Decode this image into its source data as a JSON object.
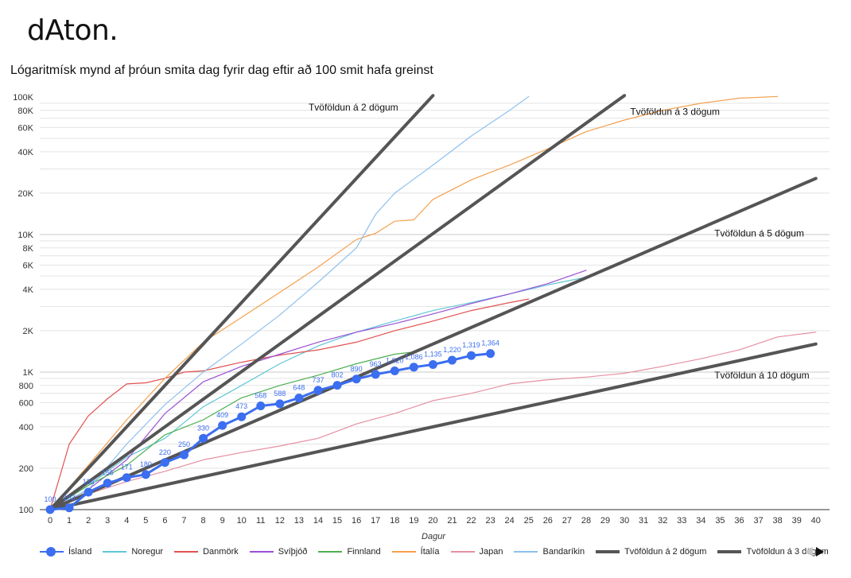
{
  "logo": "dAton.",
  "chart_data": {
    "type": "line",
    "title": "Lógaritmísk mynd af þróun smita dag fyrir dag eftir að 100 smit hafa greinst",
    "xlabel": "Dagur",
    "ylabel": "",
    "y_scale": "log",
    "xlim": [
      0,
      40
    ],
    "ylim": [
      100,
      100000
    ],
    "grid": true,
    "legend_position": "bottom",
    "x_ticks": [
      "0",
      "1",
      "2",
      "3",
      "4",
      "5",
      "6",
      "7",
      "8",
      "9",
      "10",
      "11",
      "12",
      "13",
      "14",
      "15",
      "16",
      "17",
      "18",
      "19",
      "20",
      "21",
      "22",
      "23",
      "24",
      "25",
      "26",
      "27",
      "28",
      "29",
      "30",
      "31",
      "32",
      "33",
      "34",
      "35",
      "36",
      "37",
      "38",
      "39",
      "40"
    ],
    "y_ticks": [
      {
        "v": 100,
        "label": "100"
      },
      {
        "v": 200,
        "label": "200"
      },
      {
        "v": 400,
        "label": "400"
      },
      {
        "v": 600,
        "label": "600"
      },
      {
        "v": 800,
        "label": "800"
      },
      {
        "v": 1000,
        "label": "1K"
      },
      {
        "v": 2000,
        "label": "2K"
      },
      {
        "v": 4000,
        "label": "4K"
      },
      {
        "v": 6000,
        "label": "6K"
      },
      {
        "v": 8000,
        "label": "8K"
      },
      {
        "v": 10000,
        "label": "10K"
      },
      {
        "v": 20000,
        "label": "20K"
      },
      {
        "v": 40000,
        "label": "40K"
      },
      {
        "v": 60000,
        "label": "60K"
      },
      {
        "v": 80000,
        "label": "80K"
      },
      {
        "v": 100000,
        "label": "100K"
      }
    ],
    "series": [
      {
        "name": "Ísland",
        "color": "#3b6ef0",
        "highlight": true,
        "x": [
          0,
          1,
          2,
          3,
          4,
          5,
          6,
          7,
          8,
          9,
          10,
          11,
          12,
          13,
          14,
          15,
          16,
          17,
          18,
          19,
          20,
          21,
          22,
          23
        ],
        "values": [
          100,
          103,
          134,
          156,
          171,
          180,
          220,
          250,
          330,
          409,
          473,
          568,
          588,
          648,
          737,
          802,
          890,
          963,
          1020,
          1086,
          1135,
          1220,
          1319,
          1364
        ],
        "labels": [
          "100",
          "103",
          "134",
          "156",
          "171",
          "180",
          "220",
          "250",
          "330",
          "409",
          "473",
          "568",
          "588",
          "648",
          "737",
          "802",
          "890",
          "963",
          "1,020",
          "1,086",
          "1,135",
          "1,220",
          "1,319",
          "1,364"
        ]
      },
      {
        "name": "Noregur",
        "color": "#5fc6d6",
        "x": [
          0,
          2,
          4,
          6,
          8,
          10,
          12,
          14,
          16,
          18,
          20,
          22,
          24,
          26,
          28
        ],
        "values": [
          100,
          150,
          240,
          330,
          560,
          800,
          1150,
          1550,
          1950,
          2350,
          2800,
          3200,
          3700,
          4300,
          4900
        ]
      },
      {
        "name": "Danmörk",
        "color": "#e0524f",
        "x": [
          0,
          1,
          2,
          3,
          4,
          5,
          6,
          7,
          8,
          10,
          12,
          14,
          16,
          18,
          20,
          22,
          24,
          25
        ],
        "values": [
          100,
          300,
          480,
          640,
          820,
          836,
          900,
          1000,
          1020,
          1180,
          1330,
          1450,
          1650,
          2000,
          2350,
          2800,
          3200,
          3400
        ]
      },
      {
        "name": "Svíþjóð",
        "color": "#9b4fd6",
        "x": [
          0,
          2,
          4,
          6,
          8,
          10,
          12,
          14,
          16,
          18,
          20,
          22,
          24,
          26,
          28
        ],
        "values": [
          100,
          140,
          230,
          500,
          850,
          1100,
          1350,
          1650,
          1950,
          2250,
          2650,
          3150,
          3700,
          4400,
          5500
        ]
      },
      {
        "name": "Finnland",
        "color": "#4caf50",
        "x": [
          0,
          2,
          4,
          6,
          8,
          10,
          12,
          14,
          16,
          18,
          19
        ],
        "values": [
          100,
          150,
          210,
          350,
          450,
          650,
          800,
          950,
          1150,
          1350,
          1400
        ]
      },
      {
        "name": "Ítalía",
        "color": "#f5a04e",
        "x": [
          0,
          2,
          4,
          6,
          8,
          10,
          12,
          14,
          16,
          17,
          18,
          19,
          20,
          22,
          24,
          26,
          28,
          30,
          32,
          34,
          36,
          38
        ],
        "values": [
          100,
          210,
          450,
          900,
          1650,
          2500,
          3800,
          5800,
          9200,
          10200,
          12500,
          12800,
          18000,
          25000,
          32000,
          42000,
          56000,
          68000,
          80000,
          90000,
          98000,
          101000
        ]
      },
      {
        "name": "Japan",
        "color": "#e58fa2",
        "x": [
          0,
          2,
          4,
          6,
          8,
          10,
          12,
          14,
          16,
          18,
          20,
          22,
          24,
          26,
          28,
          30,
          32,
          34,
          36,
          38,
          40
        ],
        "values": [
          100,
          130,
          160,
          190,
          230,
          260,
          290,
          330,
          420,
          500,
          620,
          700,
          820,
          880,
          920,
          980,
          1100,
          1250,
          1450,
          1800,
          1950
        ]
      },
      {
        "name": "Bandaríkin",
        "color": "#8cc0ee",
        "x": [
          0,
          2,
          4,
          6,
          8,
          10,
          12,
          14,
          16,
          17,
          18,
          20,
          22,
          24,
          25
        ],
        "values": [
          100,
          140,
          300,
          580,
          1000,
          1600,
          2600,
          4500,
          8000,
          14000,
          20000,
          32000,
          52000,
          80000,
          101000
        ]
      },
      {
        "name": "Tvöföldun á 2 dögum",
        "color": "#555555",
        "ref": true,
        "x": [
          0,
          20
        ],
        "values": [
          100,
          102400
        ]
      },
      {
        "name": "Tvöföldun á 3 dögum",
        "color": "#555555",
        "ref": true,
        "x": [
          0,
          30
        ],
        "values": [
          100,
          102400
        ]
      },
      {
        "name": "Tvöföldun á 5 dögum",
        "color": "#555555",
        "ref": true,
        "x": [
          0,
          40
        ],
        "values": [
          100,
          25600
        ]
      },
      {
        "name": "Tvöföldun á 10 dögum",
        "color": "#555555",
        "ref": true,
        "x": [
          0,
          40
        ],
        "values": [
          100,
          1600
        ]
      }
    ],
    "annotations": [
      {
        "text": "Tvöföldun á 2 dögum",
        "x": 13.5,
        "y": 80000
      },
      {
        "text": "Tvöföldun á 3 dögum",
        "x": 30.3,
        "y": 74000
      },
      {
        "text": "Tvöföldun á 5 dögum",
        "x": 34.7,
        "y": 9700
      },
      {
        "text": "Tvöföldun á 10 dögum",
        "x": 34.7,
        "y": 900
      }
    ]
  }
}
